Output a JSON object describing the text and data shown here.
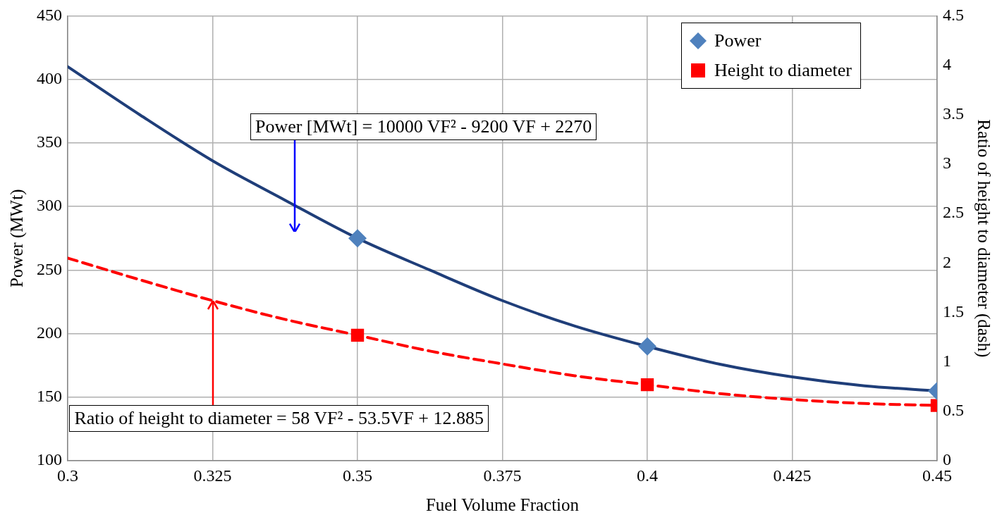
{
  "chart_data": {
    "type": "line",
    "xlabel": "Fuel Volume Fraction",
    "ylabel": "Power (MWt)",
    "y2label": "Ratio of height to diameter (dash)",
    "xlim": [
      0.3,
      0.45
    ],
    "xticks": [
      0.3,
      0.325,
      0.35,
      0.375,
      0.4,
      0.425,
      0.45
    ],
    "ylim": [
      100,
      450
    ],
    "yticks": [
      100,
      150,
      200,
      250,
      300,
      350,
      400,
      450
    ],
    "y2lim": [
      0,
      4.5
    ],
    "y2ticks": [
      0,
      0.5,
      1,
      1.5,
      2,
      2.5,
      3,
      3.5,
      4,
      4.5
    ],
    "grid": true,
    "legend": "top right",
    "series": [
      {
        "type": "line",
        "color": "#1f3e79",
        "marker": "none",
        "line_style": "solid",
        "x": [
          0.3,
          0.3125,
          0.325,
          0.3375,
          0.35,
          0.3625,
          0.375,
          0.3875,
          0.4,
          0.4125,
          0.425,
          0.4375,
          0.45
        ],
        "values": [
          410,
          372,
          336,
          305,
          275,
          250,
          226,
          206,
          190,
          176,
          166,
          159,
          155
        ]
      },
      {
        "type": "line",
        "color": "#ff0000",
        "marker": "none",
        "line_style": "dashed",
        "axis": "y2",
        "x": [
          0.3,
          0.3125,
          0.325,
          0.3375,
          0.35,
          0.3625,
          0.375,
          0.3875,
          0.4,
          0.4125,
          0.425,
          0.4375,
          0.45
        ],
        "values": [
          2.05,
          1.83,
          1.62,
          1.43,
          1.27,
          1.11,
          0.98,
          0.86,
          0.77,
          0.68,
          0.62,
          0.58,
          0.56
        ]
      },
      {
        "type": "scatter",
        "name": "Power",
        "color": "#4f81bd",
        "marker": "diamond",
        "x": [
          0.35,
          0.4,
          0.45
        ],
        "values": [
          275,
          190,
          155
        ]
      },
      {
        "type": "scatter",
        "name": "Height to diameter",
        "color": "#ff0000",
        "marker": "square",
        "axis": "y2",
        "x": [
          0.35,
          0.4,
          0.45
        ],
        "values": [
          1.27,
          0.77,
          0.56
        ]
      }
    ],
    "annotations": [
      "Power [MWt] = 10000 VF² - 9200 VF + 2270",
      {
        "text": "Ratio of height to diameter = 58 VF² - 53.5VF + 12.885",
        "x": 0.325,
        "y": 226
      }
    ]
  }
}
